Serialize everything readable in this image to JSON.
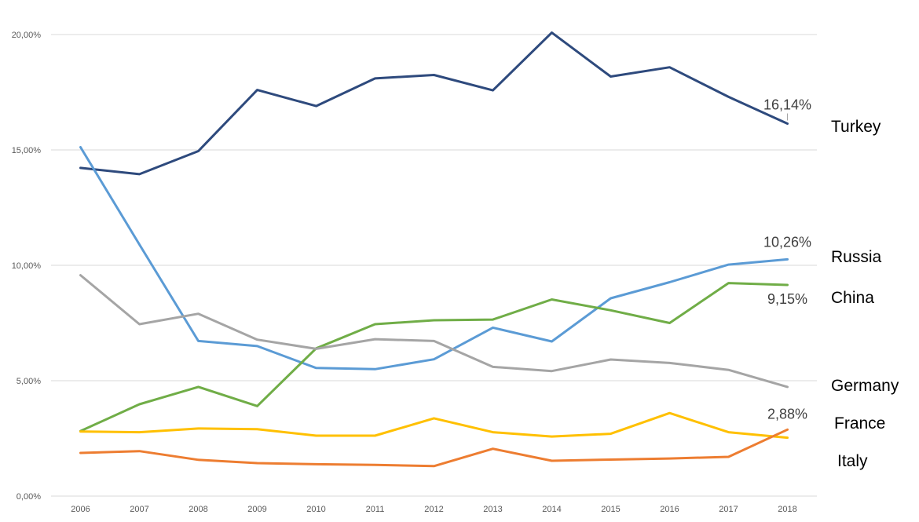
{
  "chart_data": {
    "type": "line",
    "x": [
      "2006",
      "2007",
      "2008",
      "2009",
      "2010",
      "2011",
      "2012",
      "2013",
      "2014",
      "2015",
      "2016",
      "2017",
      "2018"
    ],
    "ylim": [
      0,
      20
    ],
    "yticks": [
      {
        "value": 0,
        "label": "0,00%"
      },
      {
        "value": 5,
        "label": "5,00%"
      },
      {
        "value": 10,
        "label": "10,00%"
      },
      {
        "value": 15,
        "label": "15,00%"
      },
      {
        "value": 20,
        "label": "20,00%"
      }
    ],
    "grid": true,
    "legend": "none",
    "series": [
      {
        "name": "Turkey",
        "color": "#2E4A7D",
        "values": [
          14.22,
          13.95,
          14.95,
          17.6,
          16.9,
          18.1,
          18.25,
          17.58,
          20.08,
          18.18,
          18.58,
          17.3,
          16.14
        ],
        "data_label": "16,14%"
      },
      {
        "name": "Russia",
        "color": "#5B9BD5",
        "values": [
          15.12,
          10.9,
          6.72,
          6.5,
          5.55,
          5.5,
          5.93,
          7.3,
          6.7,
          8.57,
          9.27,
          10.03,
          10.26
        ],
        "data_label": "10,26%"
      },
      {
        "name": "China",
        "color": "#70AD47",
        "values": [
          2.82,
          3.98,
          4.73,
          3.9,
          6.4,
          7.45,
          7.62,
          7.65,
          8.52,
          8.05,
          7.5,
          9.23,
          9.15
        ],
        "data_label": "9,15%"
      },
      {
        "name": "Germany",
        "color": "#A5A5A5",
        "values": [
          9.57,
          7.45,
          7.9,
          6.78,
          6.38,
          6.8,
          6.72,
          5.6,
          5.42,
          5.92,
          5.77,
          5.47,
          4.73
        ],
        "data_label": ""
      },
      {
        "name": "France",
        "color": "#FFC000",
        "values": [
          2.8,
          2.77,
          2.93,
          2.9,
          2.62,
          2.62,
          3.37,
          2.77,
          2.58,
          2.7,
          3.6,
          2.77,
          2.53
        ],
        "data_label": ""
      },
      {
        "name": "Italy",
        "color": "#ED7D31",
        "values": [
          1.87,
          1.95,
          1.57,
          1.43,
          1.38,
          1.35,
          1.3,
          2.05,
          1.53,
          1.58,
          1.63,
          1.7,
          2.88
        ],
        "data_label": "2,88%"
      }
    ]
  }
}
